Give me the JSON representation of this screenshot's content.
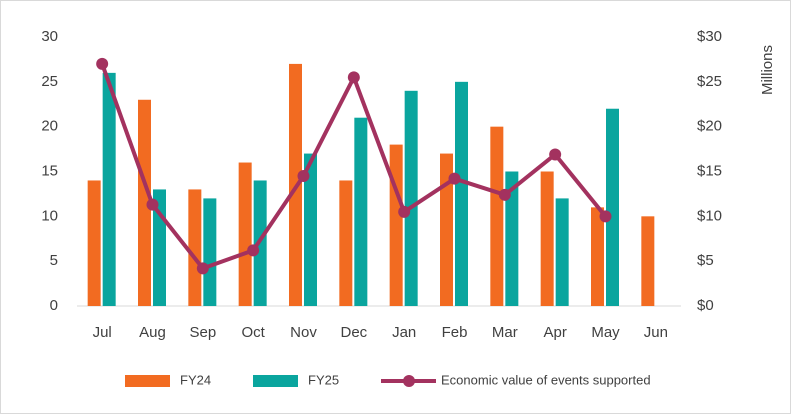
{
  "chart_data": {
    "type": "bar-line",
    "categories": [
      "Jul",
      "Aug",
      "Sep",
      "Oct",
      "Nov",
      "Dec",
      "Jan",
      "Feb",
      "Mar",
      "Apr",
      "May",
      "Jun"
    ],
    "series": [
      {
        "name": "FY24",
        "type": "bar",
        "color": "#f26b21",
        "values": [
          14,
          23,
          13,
          16,
          27,
          14,
          18,
          17,
          20,
          15,
          11,
          10
        ]
      },
      {
        "name": "FY25",
        "type": "bar",
        "color": "#0aa59e",
        "values": [
          26,
          13,
          12,
          14,
          17,
          21,
          24,
          25,
          15,
          12,
          22,
          null
        ]
      },
      {
        "name": "Economic value of events supported",
        "type": "line",
        "axis": "y2",
        "color": "#a3325f",
        "values": [
          27.0,
          11.3,
          4.2,
          6.2,
          14.5,
          25.5,
          10.5,
          14.2,
          12.4,
          16.9,
          10.0,
          null
        ]
      }
    ],
    "ylim": [
      0,
      30
    ],
    "yticks": [
      0,
      5,
      10,
      15,
      20,
      25,
      30
    ],
    "y2lim": [
      0,
      30
    ],
    "y2ticks": [
      {
        "value": 0,
        "label": "$0"
      },
      {
        "value": 5,
        "label": "$5"
      },
      {
        "value": 10,
        "label": "$10"
      },
      {
        "value": 15,
        "label": "$15"
      },
      {
        "value": 20,
        "label": "$20"
      },
      {
        "value": 25,
        "label": "$25"
      },
      {
        "value": 30,
        "label": "$30"
      }
    ],
    "y2label": "Millions",
    "legend": "bottom"
  }
}
